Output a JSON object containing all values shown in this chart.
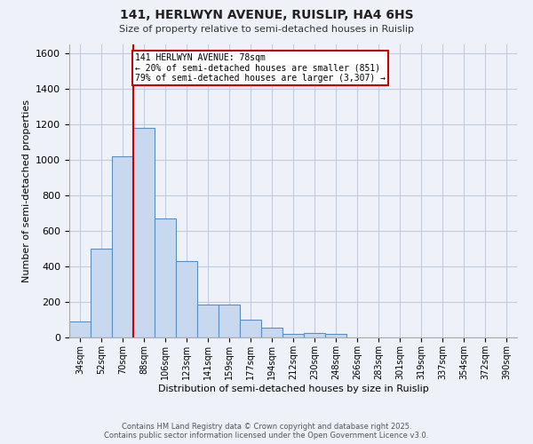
{
  "title_line1": "141, HERLWYN AVENUE, RUISLIP, HA4 6HS",
  "title_line2": "Size of property relative to semi-detached houses in Ruislip",
  "xlabel": "Distribution of semi-detached houses by size in Ruislip",
  "ylabel": "Number of semi-detached properties",
  "categories": [
    "34sqm",
    "52sqm",
    "70sqm",
    "88sqm",
    "106sqm",
    "123sqm",
    "141sqm",
    "159sqm",
    "177sqm",
    "194sqm",
    "212sqm",
    "230sqm",
    "248sqm",
    "266sqm",
    "283sqm",
    "301sqm",
    "319sqm",
    "337sqm",
    "354sqm",
    "372sqm",
    "390sqm"
  ],
  "values": [
    90,
    500,
    1020,
    1180,
    670,
    430,
    185,
    185,
    100,
    55,
    20,
    25,
    20,
    0,
    0,
    0,
    0,
    0,
    0,
    0,
    0
  ],
  "bar_color": "#c8d9ef",
  "bar_edgecolor": "#5a8fc0",
  "red_line_x": 2.5,
  "annotation_text": "141 HERLWYN AVENUE: 78sqm\n← 20% of semi-detached houses are smaller (851)\n79% of semi-detached houses are larger (3,307) →",
  "annotation_box_color": "#ffffff",
  "annotation_box_edgecolor": "#cc0000",
  "red_line_color": "#cc0000",
  "ylim": [
    0,
    1650
  ],
  "yticks": [
    0,
    200,
    400,
    600,
    800,
    1000,
    1200,
    1400,
    1600
  ],
  "grid_color": "#c0ccdd",
  "bg_color": "#eef2f8",
  "footer_line1": "Contains HM Land Registry data © Crown copyright and database right 2025.",
  "footer_line2": "Contains public sector information licensed under the Open Government Licence v3.0."
}
